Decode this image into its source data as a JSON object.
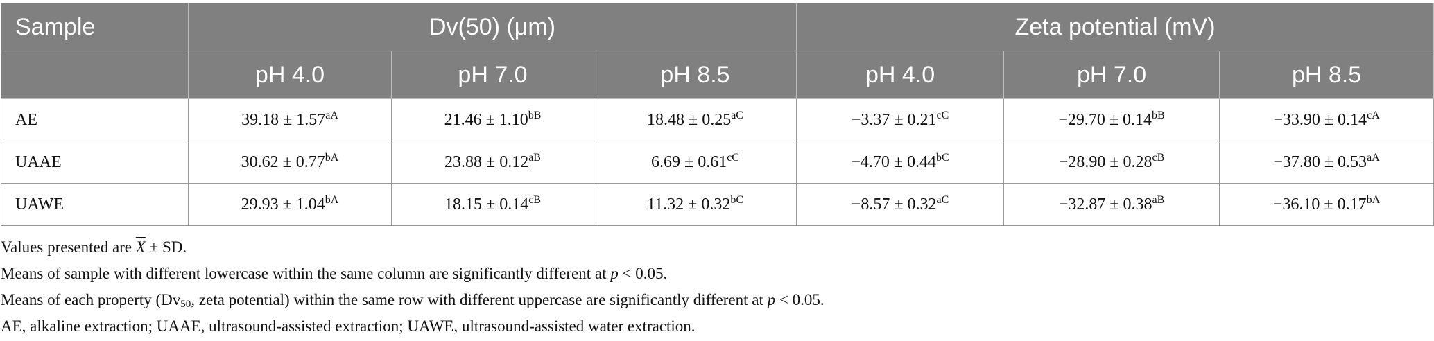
{
  "table": {
    "header_sample": "Sample",
    "group_dv50": "Dv(50) (μm)",
    "group_zeta": "Zeta potential (mV)",
    "ph_labels": [
      "pH 4.0",
      "pH 7.0",
      "pH 8.5",
      "pH 4.0",
      "pH 7.0",
      "pH 8.5"
    ],
    "rows": [
      {
        "sample": "AE",
        "cells": [
          {
            "v": "39.18 ± 1.57",
            "s": "aA"
          },
          {
            "v": "21.46 ± 1.10",
            "s": "bB"
          },
          {
            "v": "18.48 ± 0.25",
            "s": "aC"
          },
          {
            "v": "−3.37 ± 0.21",
            "s": "cC"
          },
          {
            "v": "−29.70 ± 0.14",
            "s": "bB"
          },
          {
            "v": "−33.90 ± 0.14",
            "s": "cA"
          }
        ]
      },
      {
        "sample": "UAAE",
        "cells": [
          {
            "v": "30.62 ± 0.77",
            "s": "bA"
          },
          {
            "v": "23.88 ± 0.12",
            "s": "aB"
          },
          {
            "v": "6.69 ± 0.61",
            "s": "cC"
          },
          {
            "v": "−4.70 ± 0.44",
            "s": "bC"
          },
          {
            "v": "−28.90 ± 0.28",
            "s": "cB"
          },
          {
            "v": "−37.80 ± 0.53",
            "s": "aA"
          }
        ]
      },
      {
        "sample": "UAWE",
        "cells": [
          {
            "v": "29.93 ± 1.04",
            "s": "bA"
          },
          {
            "v": "18.15 ± 0.14",
            "s": "cB"
          },
          {
            "v": "11.32 ± 0.32",
            "s": "bC"
          },
          {
            "v": "−8.57 ± 0.32",
            "s": "aC"
          },
          {
            "v": "−32.87 ± 0.38",
            "s": "aB"
          },
          {
            "v": "−36.10 ± 0.17",
            "s": "bA"
          }
        ]
      }
    ]
  },
  "notes": {
    "line1_pre": "Values presented are",
    "line1_xbar": "X",
    "line1_post": "± SD.",
    "line2_pre": "Means of sample with different lowercase within the same column are significantly different at",
    "line2_p": "p",
    "line2_post": "< 0.05.",
    "line3_pre": "Means of each property (Dv",
    "line3_sub": "50",
    "line3_mid": ", zeta potential) within the same row with different uppercase are significantly different at",
    "line3_p": "p",
    "line3_post": "< 0.05.",
    "line4": "AE, alkaline extraction; UAAE, ultrasound-assisted extraction; UAWE, ultrasound-assisted water extraction."
  }
}
